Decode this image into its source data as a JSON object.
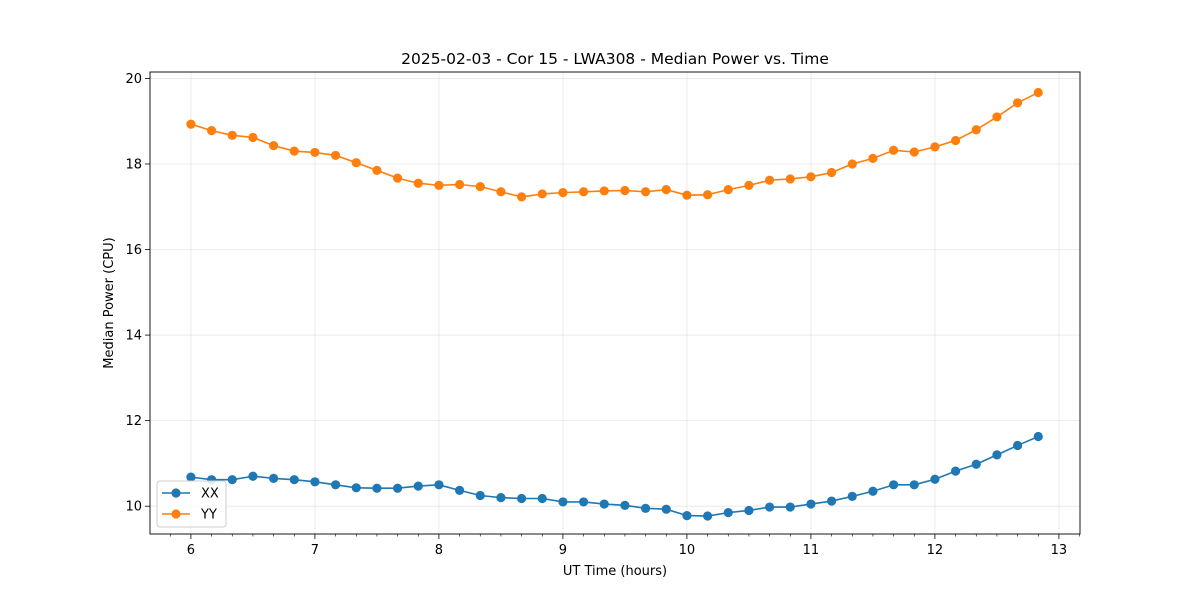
{
  "chart_data": {
    "type": "line",
    "title": "2025-02-03 - Cor 15 - LWA308 - Median Power vs. Time",
    "xlabel": "UT Time (hours)",
    "ylabel": "Median Power (CPU)",
    "xlim": [
      5.67,
      13.17
    ],
    "ylim": [
      9.35,
      20.15
    ],
    "xticks": [
      6,
      7,
      8,
      9,
      10,
      11,
      12,
      13
    ],
    "yticks": [
      10,
      12,
      14,
      16,
      18,
      20
    ],
    "grid": true,
    "legend_position": "lower-left",
    "x": [
      6.0,
      6.1667,
      6.3333,
      6.5,
      6.6667,
      6.8333,
      7.0,
      7.1667,
      7.3333,
      7.5,
      7.6667,
      7.8333,
      8.0,
      8.1667,
      8.3333,
      8.5,
      8.6667,
      8.8333,
      9.0,
      9.1667,
      9.3333,
      9.5,
      9.6667,
      9.8333,
      10.0,
      10.1667,
      10.3333,
      10.5,
      10.6667,
      10.8333,
      11.0,
      11.1667,
      11.3333,
      11.5,
      11.6667,
      11.8333,
      12.0,
      12.1667,
      12.3333,
      12.5,
      12.6667,
      12.8333
    ],
    "series": [
      {
        "name": "XX",
        "color": "#1f77b4",
        "values": [
          10.68,
          10.62,
          10.62,
          10.7,
          10.65,
          10.62,
          10.57,
          10.5,
          10.43,
          10.42,
          10.42,
          10.47,
          10.5,
          10.37,
          10.25,
          10.2,
          10.18,
          10.18,
          10.1,
          10.1,
          10.05,
          10.02,
          9.95,
          9.93,
          9.78,
          9.77,
          9.85,
          9.9,
          9.98,
          9.98,
          10.05,
          10.12,
          10.23,
          10.35,
          10.5,
          10.5,
          10.63,
          10.82,
          10.98,
          11.2,
          11.42,
          11.63
        ]
      },
      {
        "name": "YY",
        "color": "#ff7f0e",
        "values": [
          18.93,
          18.78,
          18.67,
          18.62,
          18.43,
          18.3,
          18.27,
          18.2,
          18.03,
          17.85,
          17.67,
          17.55,
          17.5,
          17.52,
          17.47,
          17.35,
          17.23,
          17.3,
          17.33,
          17.35,
          17.37,
          17.38,
          17.35,
          17.4,
          17.27,
          17.28,
          17.4,
          17.5,
          17.62,
          17.65,
          17.7,
          17.8,
          18.0,
          18.13,
          18.32,
          18.28,
          18.4,
          18.55,
          18.8,
          19.1,
          19.43,
          19.67
        ]
      }
    ]
  }
}
